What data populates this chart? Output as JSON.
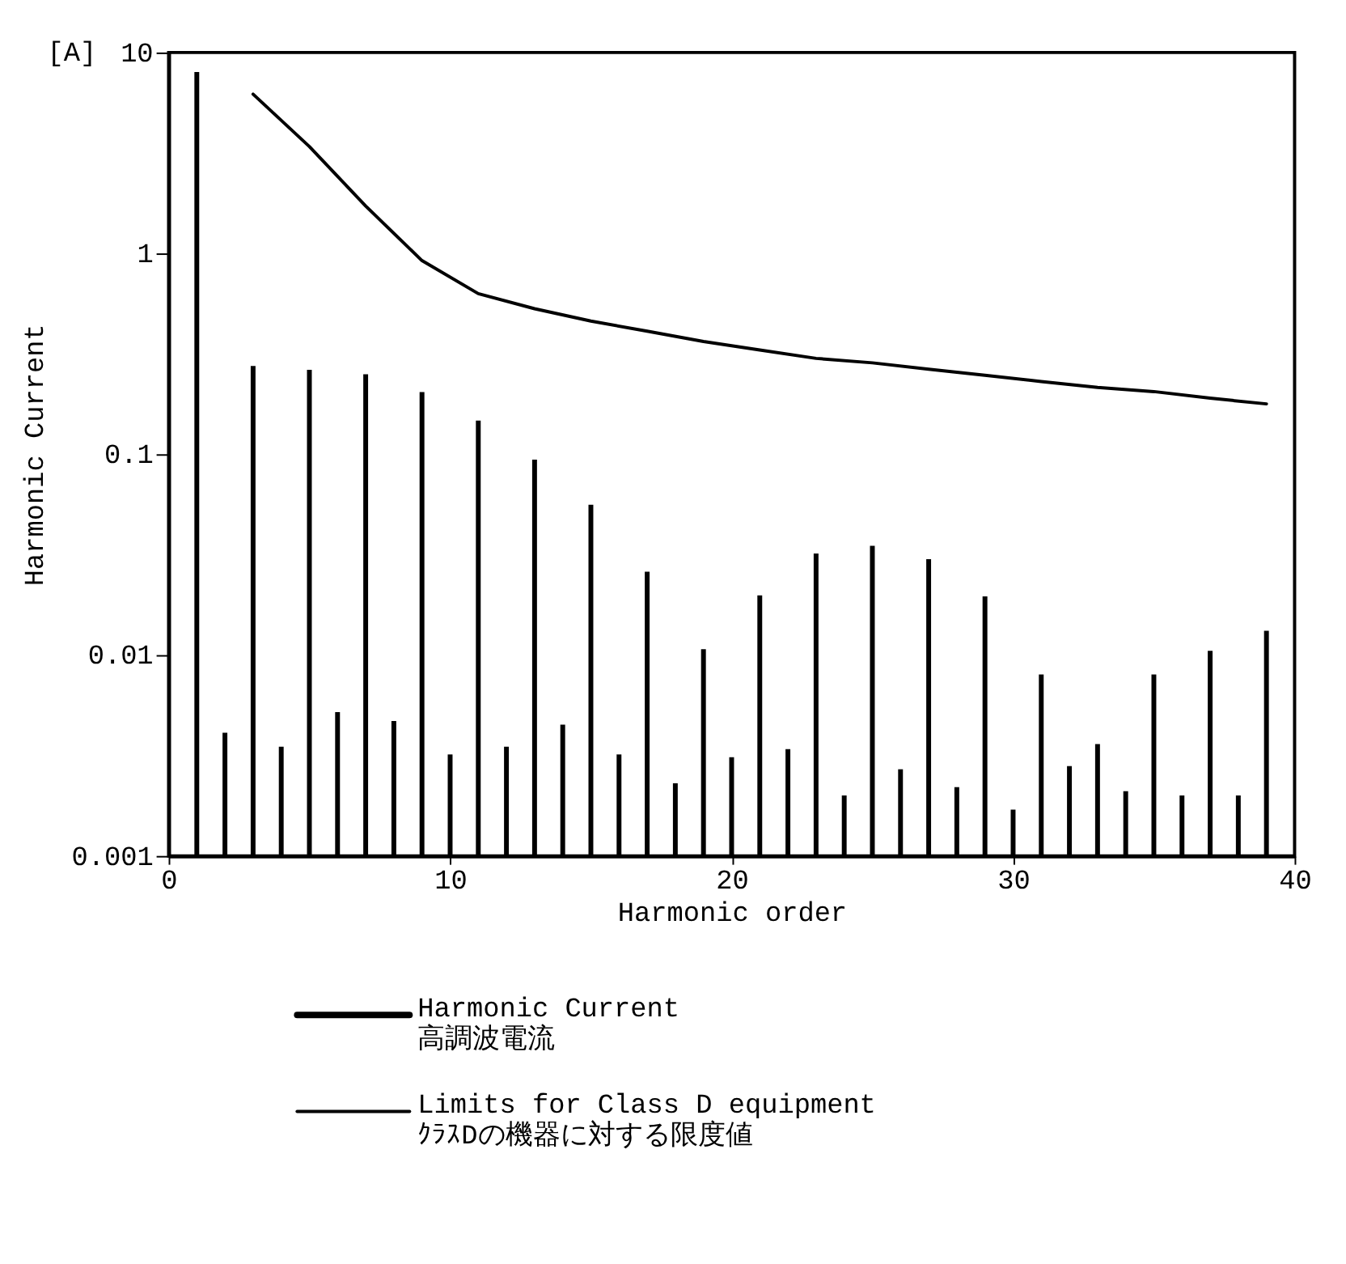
{
  "chart_data": {
    "type": "bar",
    "xlabel": "Harmonic order",
    "ylabel": "Harmonic Current",
    "annotations": [
      "[A]"
    ],
    "log": "y",
    "xlim": [
      0,
      40
    ],
    "xticks": [
      0,
      10,
      20,
      30,
      40
    ],
    "ylim": [
      0.001,
      10
    ],
    "yticks": [
      10,
      1,
      0.1,
      0.01,
      0.001
    ],
    "grid": false,
    "legend": "bottom",
    "series": [
      {
        "name": "Harmonic Current\n高調波電流",
        "color": "#000000",
        "x": [
          1,
          2,
          3,
          4,
          5,
          6,
          7,
          8,
          9,
          10,
          11,
          12,
          13,
          14,
          15,
          16,
          17,
          18,
          19,
          20,
          21,
          22,
          23,
          24,
          25,
          26,
          27,
          28,
          29,
          30,
          31,
          32,
          33,
          34,
          35,
          36,
          37,
          38,
          39
        ],
        "values": [
          8,
          0.0041,
          0.275,
          0.0035,
          0.263,
          0.0052,
          0.25,
          0.0047,
          0.204,
          0.0032,
          0.147,
          0.0035,
          0.094,
          0.0045,
          0.056,
          0.0032,
          0.026,
          0.0023,
          0.0107,
          0.0031,
          0.0198,
          0.0034,
          0.032,
          0.002,
          0.035,
          0.0027,
          0.03,
          0.0022,
          0.0196,
          0.0017,
          0.008,
          0.0028,
          0.0036,
          0.0021,
          0.008,
          0.002,
          0.0105,
          0.002,
          0.0132
        ]
      },
      {
        "name": "Limits for Class D equipment\nｸﾗｽDの機器に対する限度値",
        "type": "line",
        "color": "#000000",
        "x": [
          3,
          5,
          7,
          9,
          11,
          13,
          15,
          17,
          19,
          21,
          23,
          25,
          27,
          29,
          31,
          33,
          35,
          37,
          39
        ],
        "values": [
          6.2,
          3.4,
          1.72,
          0.92,
          0.63,
          0.53,
          0.46,
          0.41,
          0.364,
          0.33,
          0.3,
          0.285,
          0.265,
          0.247,
          0.23,
          0.215,
          0.205,
          0.19,
          0.178
        ]
      }
    ]
  }
}
